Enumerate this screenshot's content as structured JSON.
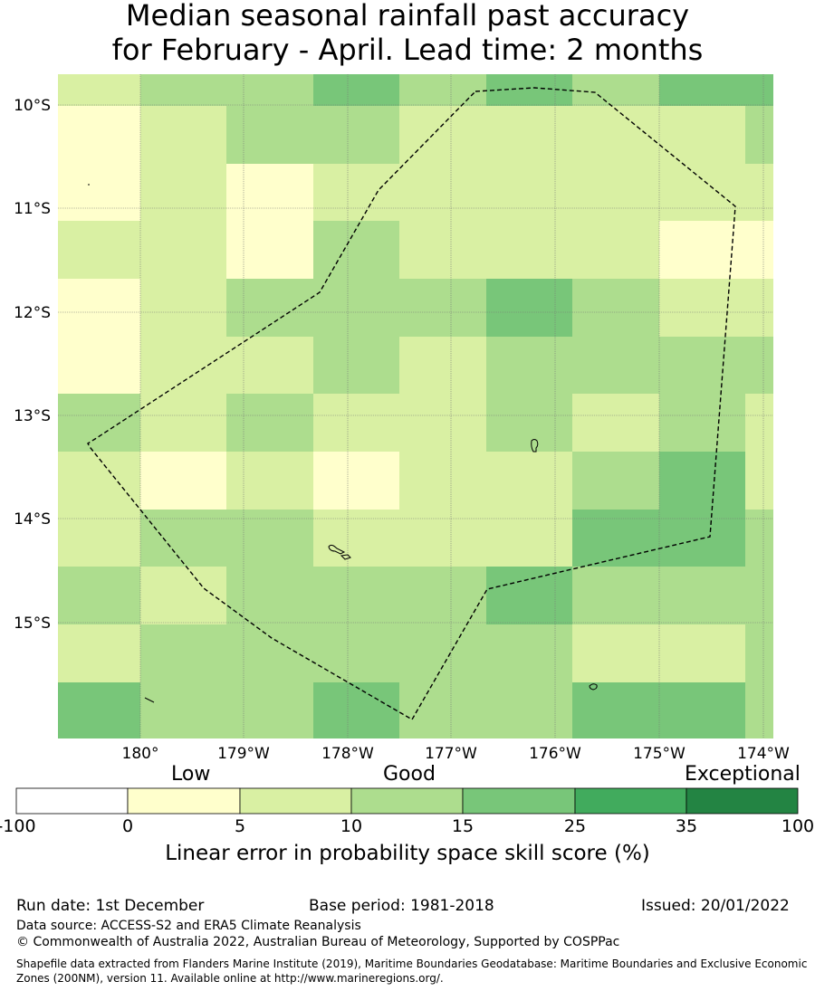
{
  "title_line1": "Median seasonal rainfall past accuracy",
  "title_line2": "for February - April. Lead time: 2 months",
  "map": {
    "lat_labels": [
      "10°S",
      "11°S",
      "12°S",
      "13°S",
      "14°S",
      "15°S"
    ],
    "lon_labels": [
      "180°",
      "179°W",
      "178°W",
      "177°W",
      "176°W",
      "175°W",
      "174°W"
    ],
    "grid_columns_lon_west_edges": [
      180.8,
      180.0,
      179.2,
      178.3,
      177.5,
      176.7,
      175.8,
      175.0,
      174.2
    ],
    "grid_rows_lat": [
      "9.7S",
      "10.3S",
      "10.8S",
      "11.4S",
      "11.9S",
      "12.5S",
      "13.1S",
      "13.6S",
      "14.2S",
      "14.7S",
      "15.3S",
      "15.8S"
    ],
    "skill_class_grid": [
      [
        2,
        3,
        3,
        4,
        3,
        4,
        3,
        4,
        4
      ],
      [
        1,
        2,
        3,
        3,
        2,
        2,
        2,
        2,
        3
      ],
      [
        1,
        2,
        1,
        2,
        2,
        2,
        2,
        2,
        2
      ],
      [
        2,
        2,
        1,
        3,
        2,
        2,
        2,
        1,
        1
      ],
      [
        1,
        2,
        3,
        3,
        3,
        4,
        3,
        2,
        2
      ],
      [
        1,
        2,
        2,
        3,
        2,
        3,
        3,
        3,
        3
      ],
      [
        3,
        2,
        3,
        2,
        2,
        3,
        2,
        3,
        2
      ],
      [
        2,
        1,
        2,
        1,
        2,
        2,
        3,
        4,
        2
      ],
      [
        2,
        3,
        3,
        2,
        2,
        2,
        4,
        4,
        3
      ],
      [
        3,
        2,
        3,
        3,
        3,
        4,
        3,
        3,
        3
      ],
      [
        2,
        3,
        3,
        3,
        3,
        3,
        2,
        2,
        3
      ],
      [
        4,
        3,
        3,
        4,
        3,
        3,
        4,
        4,
        3
      ]
    ]
  },
  "colorbar": {
    "category_labels": [
      "Low",
      "Good",
      "Exceptional"
    ],
    "ticks": [
      "-100",
      "0",
      "5",
      "10",
      "15",
      "25",
      "35",
      "100"
    ],
    "colors": [
      "#ffffff",
      "#ffffcc",
      "#d9f0a3",
      "#addd8e",
      "#78c679",
      "#41ab5d",
      "#238443"
    ],
    "title": "Linear error in probability space skill score (%)"
  },
  "footer": {
    "run_date": "Run date: 1st December",
    "base_period": "Base period: 1981-2018",
    "issued": "Issued: 20/01/2022",
    "data_source": "Data source: ACCESS-S2 and ERA5 Climate Reanalysis",
    "copyright": "© Commonwealth of Australia 2022, Australian Bureau of Meteorology, Supported by COSPPac",
    "shapefile_note": "Shapefile data extracted from Flanders Marine Institute (2019), Maritime Boundaries Geodatabase: Maritime Boundaries and Exclusive Economic Zones (200NM), version 11. Available online at http://www.marineregions.org/."
  }
}
